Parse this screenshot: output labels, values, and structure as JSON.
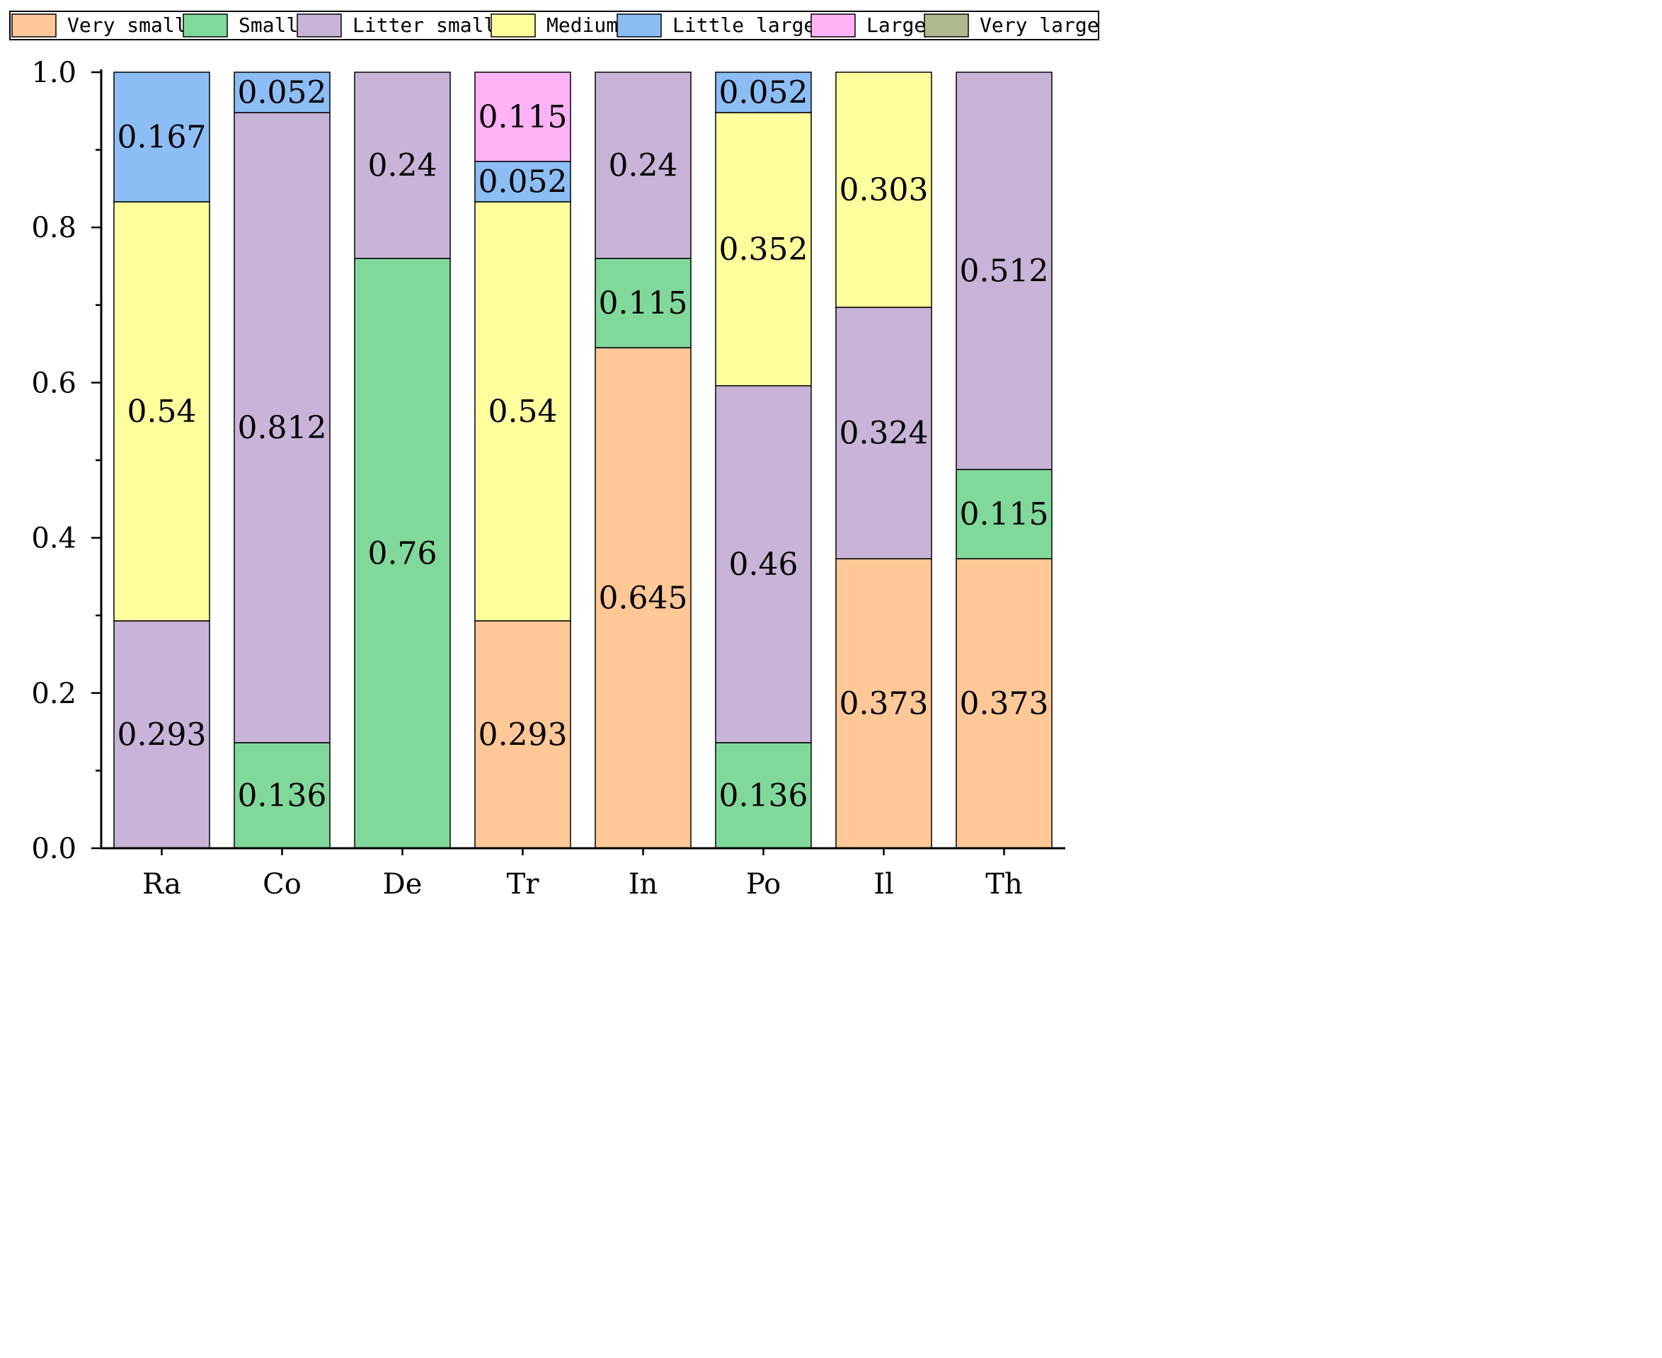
{
  "colors": {
    "Very small": "#FFC896",
    "Small": "#80D99B",
    "Litter small": "#C8B4D8",
    "Medium": "#FFFF9E",
    "Little large": "#8CBEF5",
    "Large": "#FFB2F5",
    "Very large": "#B0B88E"
  },
  "chart_data": {
    "type": "bar",
    "stacked": true,
    "title": "",
    "xlabel": "",
    "ylabel": "",
    "ylim": [
      0,
      1.0
    ],
    "yticks": [
      "0.0",
      "0.2",
      "0.4",
      "0.6",
      "0.8",
      "1.0"
    ],
    "legend_position": "top",
    "categories": [
      "Ra",
      "Co",
      "De",
      "Tr",
      "In",
      "Po",
      "Il",
      "Th"
    ],
    "series": [
      {
        "name": "Very small",
        "values": [
          0,
          0,
          0,
          0.293,
          0.645,
          0,
          0.373,
          0.373
        ],
        "labels": [
          "",
          "",
          "",
          "0.293",
          "0.645",
          "",
          "0.373",
          "0.373"
        ]
      },
      {
        "name": "Small",
        "values": [
          0,
          0.136,
          0.76,
          0,
          0.115,
          0.136,
          0,
          0.115
        ],
        "labels": [
          "",
          "0.136",
          "0.76",
          "",
          "0.115",
          "0.136",
          "",
          "0.115"
        ]
      },
      {
        "name": "Litter small",
        "values": [
          0.293,
          0.812,
          0.24,
          0,
          0.24,
          0.46,
          0.324,
          0.512
        ],
        "labels": [
          "0.293",
          "0.812",
          "0.24",
          "",
          "0.24",
          "0.46",
          "0.324",
          "0.512"
        ]
      },
      {
        "name": "Medium",
        "values": [
          0.54,
          0,
          0,
          0.54,
          0,
          0.352,
          0.303,
          0
        ],
        "labels": [
          "0.54",
          "",
          "",
          "0.54",
          "",
          "0.352",
          "0.303",
          ""
        ]
      },
      {
        "name": "Little large",
        "values": [
          0.167,
          0.052,
          0,
          0.052,
          0,
          0.052,
          0,
          0
        ],
        "labels": [
          "0.167",
          "0.052",
          "",
          "0.052",
          "",
          "0.052",
          "",
          ""
        ]
      },
      {
        "name": "Large",
        "values": [
          0,
          0,
          0,
          0.115,
          0,
          0,
          0,
          0
        ],
        "labels": [
          "",
          "",
          "",
          "0.115",
          "",
          "",
          "",
          ""
        ]
      },
      {
        "name": "Very large",
        "values": [
          0,
          0,
          0,
          0,
          0,
          0,
          0,
          0
        ],
        "labels": [
          "",
          "",
          "",
          "",
          "",
          "",
          "",
          ""
        ]
      }
    ]
  }
}
